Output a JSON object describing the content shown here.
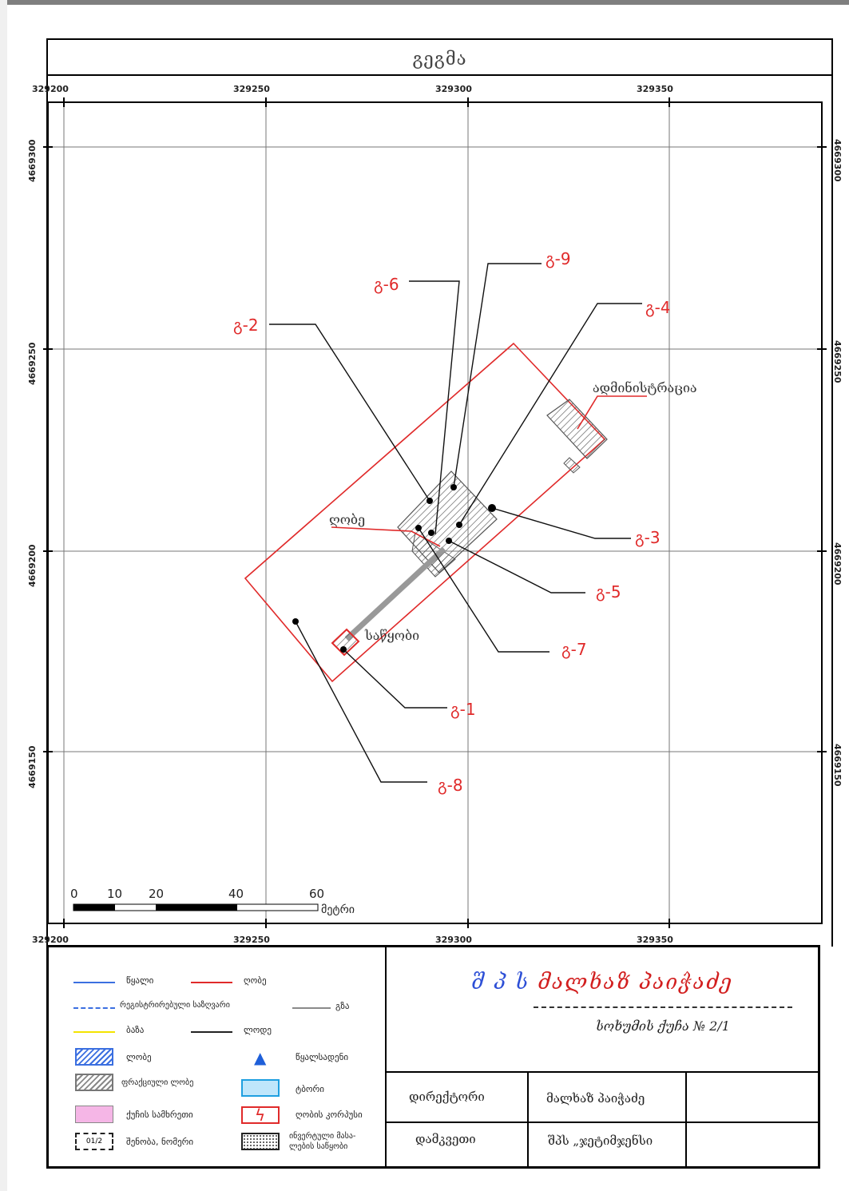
{
  "title": "გეგმა",
  "axes": {
    "x_ticks": [
      "329200",
      "329250",
      "329300",
      "329350"
    ],
    "y_ticks": [
      "4669300",
      "4669250",
      "4669200",
      "4669150"
    ],
    "x_values": [
      329200,
      329250,
      329300,
      329350
    ],
    "y_values": [
      4669300,
      4669250,
      4669200,
      4669150
    ]
  },
  "scale_bar": {
    "labels": [
      "0",
      "10",
      "20",
      "40",
      "60"
    ],
    "unit": "მეტრი"
  },
  "features": {
    "administration": "ადმინისტრაცია",
    "warehouse": "საწყობი",
    "fence": "ღობე"
  },
  "points": [
    {
      "label": "გ-1"
    },
    {
      "label": "გ-2"
    },
    {
      "label": "გ-3"
    },
    {
      "label": "გ-4"
    },
    {
      "label": "გ-5"
    },
    {
      "label": "გ-6"
    },
    {
      "label": "გ-7"
    },
    {
      "label": "გ-8"
    },
    {
      "label": "გ-9"
    }
  ],
  "legend": {
    "items": [
      {
        "label": "წყალი",
        "color": "#3b6fe0"
      },
      {
        "label": "ღობე",
        "color": "#e02a2a"
      },
      {
        "label": "რეგისტრირებული საზღვარი",
        "color": "#3b6fe0"
      },
      {
        "label": "გზა",
        "color": "#8a8a8a"
      },
      {
        "label": "ბაზა",
        "color": "#f4e400"
      },
      {
        "label": "ლოდე",
        "color": "#222222"
      },
      {
        "label": "ლობე",
        "color": "#3b6fe0"
      },
      {
        "label": "წყალსადენი",
        "color": "#1e5fd9"
      },
      {
        "label": "ფრაქციული ლობე",
        "color": "#777777"
      },
      {
        "label": "ტბორი",
        "color": "#1e9fe0"
      },
      {
        "label": "ქუჩის სამხრეთი",
        "color": "#f5b6e6"
      },
      {
        "label": "ღობის კორპუსი",
        "color": "#e02a2a"
      },
      {
        "label": "შენობა, ნომერი",
        "color": "#222222"
      },
      {
        "label": "ინვერტული მასა-ლების საწყობი",
        "color": "#222222"
      }
    ]
  },
  "title_block": {
    "company_prefix": "შ პ ს",
    "company_name": "მალხაზ პაიჭაძე",
    "address": "სოხუმის ქუჩა № 2/1",
    "rows": [
      {
        "role": "დირექტორი",
        "name": "მალხაზ პაიჭაძე"
      },
      {
        "role": "დამკვეთი",
        "name": "შპს „ჯეტიმჯენსი"
      }
    ]
  }
}
